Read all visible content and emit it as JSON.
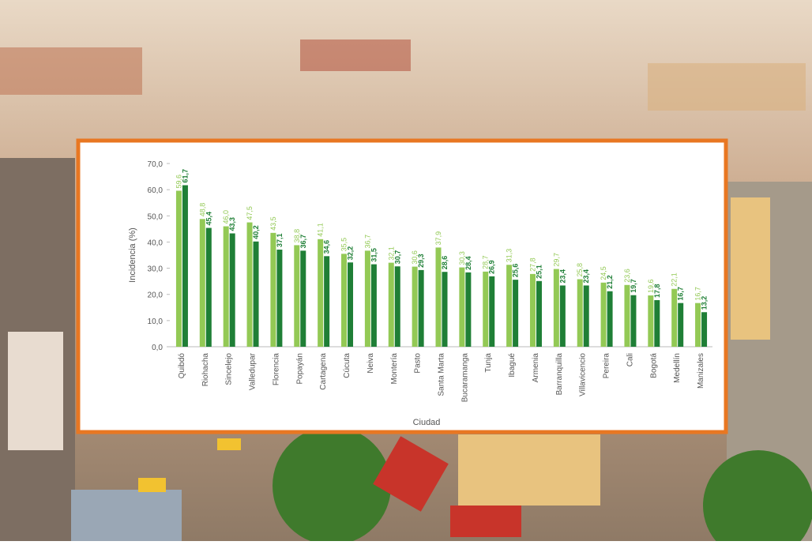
{
  "chart_data": {
    "type": "bar",
    "ylabel": "Incidencia  (%)",
    "xlabel": "Ciudad",
    "categories": [
      "Quibdó",
      "Riohacha",
      "Sincelejo",
      "Valledupar",
      "Florencia",
      "Popayán",
      "Cartagena",
      "Cúcuta",
      "Neiva",
      "Montería",
      "Pasto",
      "Santa Marta",
      "Bucaramanga",
      "Tunja",
      "Ibagué",
      "Armenia",
      "Barranquilla",
      "Villavicencio",
      "Pereira",
      "Cali",
      "Bogotá",
      "Medellín",
      "Manizales"
    ],
    "series": [
      {
        "color": "#93c955",
        "values": [
          59.6,
          48.8,
          46.0,
          47.5,
          43.5,
          38.8,
          41.1,
          35.5,
          36.7,
          32.1,
          30.6,
          37.9,
          30.3,
          28.7,
          31.3,
          27.8,
          29.7,
          25.8,
          24.5,
          23.6,
          19.6,
          22.1,
          16.7
        ],
        "value_labels": [
          "59,6",
          "48,8",
          "46,0",
          "47,5",
          "43,5",
          "38,8",
          "41,1",
          "35,5",
          "36,7",
          "32,1",
          "30,6",
          "37,9",
          "30,3",
          "28,7",
          "31,3",
          "27,8",
          "29,7",
          "25,8",
          "24,5",
          "23,6",
          "19,6",
          "22,1",
          "16,7"
        ]
      },
      {
        "color": "#1f7f36",
        "values": [
          61.7,
          45.4,
          43.3,
          40.2,
          37.1,
          36.7,
          34.6,
          32.2,
          31.5,
          30.7,
          29.3,
          28.6,
          28.4,
          26.9,
          25.6,
          25.1,
          23.4,
          23.4,
          21.2,
          19.7,
          17.8,
          16.7,
          13.2
        ],
        "value_labels": [
          "61,7",
          "45,4",
          "43,3",
          "40,2",
          "37,1",
          "36,7",
          "34,6",
          "32,2",
          "31,5",
          "30,7",
          "29,3",
          "28,6",
          "28,4",
          "26,9",
          "25,6",
          "25,1",
          "23,4",
          "23,4",
          "21,2",
          "19,7",
          "17,8",
          "16,7",
          "13,2"
        ]
      }
    ],
    "ylim": [
      0,
      70
    ],
    "yticks": [
      {
        "value": 0,
        "label": "0,0"
      },
      {
        "value": 10,
        "label": "10,0"
      },
      {
        "value": 20,
        "label": "20,0"
      },
      {
        "value": 30,
        "label": "30,0"
      },
      {
        "value": 40,
        "label": "40,0"
      },
      {
        "value": 50,
        "label": "50,0"
      },
      {
        "value": 60,
        "label": "60,0"
      },
      {
        "value": 70,
        "label": "70,0"
      }
    ],
    "grid": false
  }
}
